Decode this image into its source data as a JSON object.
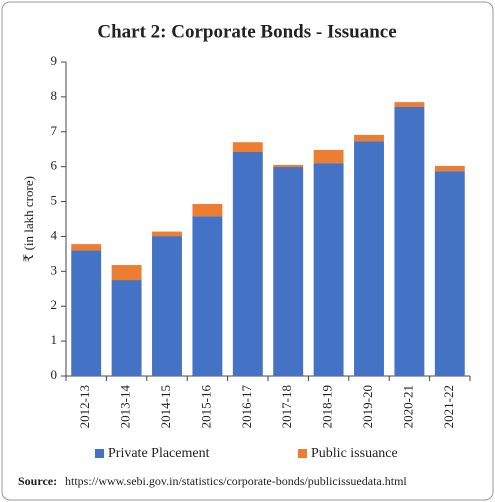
{
  "chart_data": {
    "type": "stacked-bar",
    "title": "Chart 2: Corporate Bonds - Issuance",
    "y_label": "₹ (in lakh crore)",
    "categories": [
      "2012-13",
      "2013-14",
      "2014-15",
      "2015-16",
      "2016-17",
      "2017-18",
      "2018-19",
      "2019-20",
      "2020-21",
      "2021-22"
    ],
    "series": [
      {
        "name": "Private Placement",
        "color": "#4472c4",
        "values": [
          3.6,
          2.75,
          4.01,
          4.58,
          6.42,
          5.99,
          6.1,
          6.73,
          7.71,
          5.87
        ]
      },
      {
        "name": "Public issuance",
        "color": "#ed7d31",
        "values": [
          0.18,
          0.43,
          0.13,
          0.35,
          0.28,
          0.06,
          0.38,
          0.18,
          0.14,
          0.15
        ]
      }
    ],
    "ylim": [
      0,
      9
    ],
    "yticks": [
      0,
      1,
      2,
      3,
      4,
      5,
      6,
      7,
      8,
      9
    ],
    "grid": false,
    "legend": "bottom",
    "source_label": "Source:",
    "source": "https://www.sebi.gov.in/statistics/corporate-bonds/publicissuedata.html"
  }
}
